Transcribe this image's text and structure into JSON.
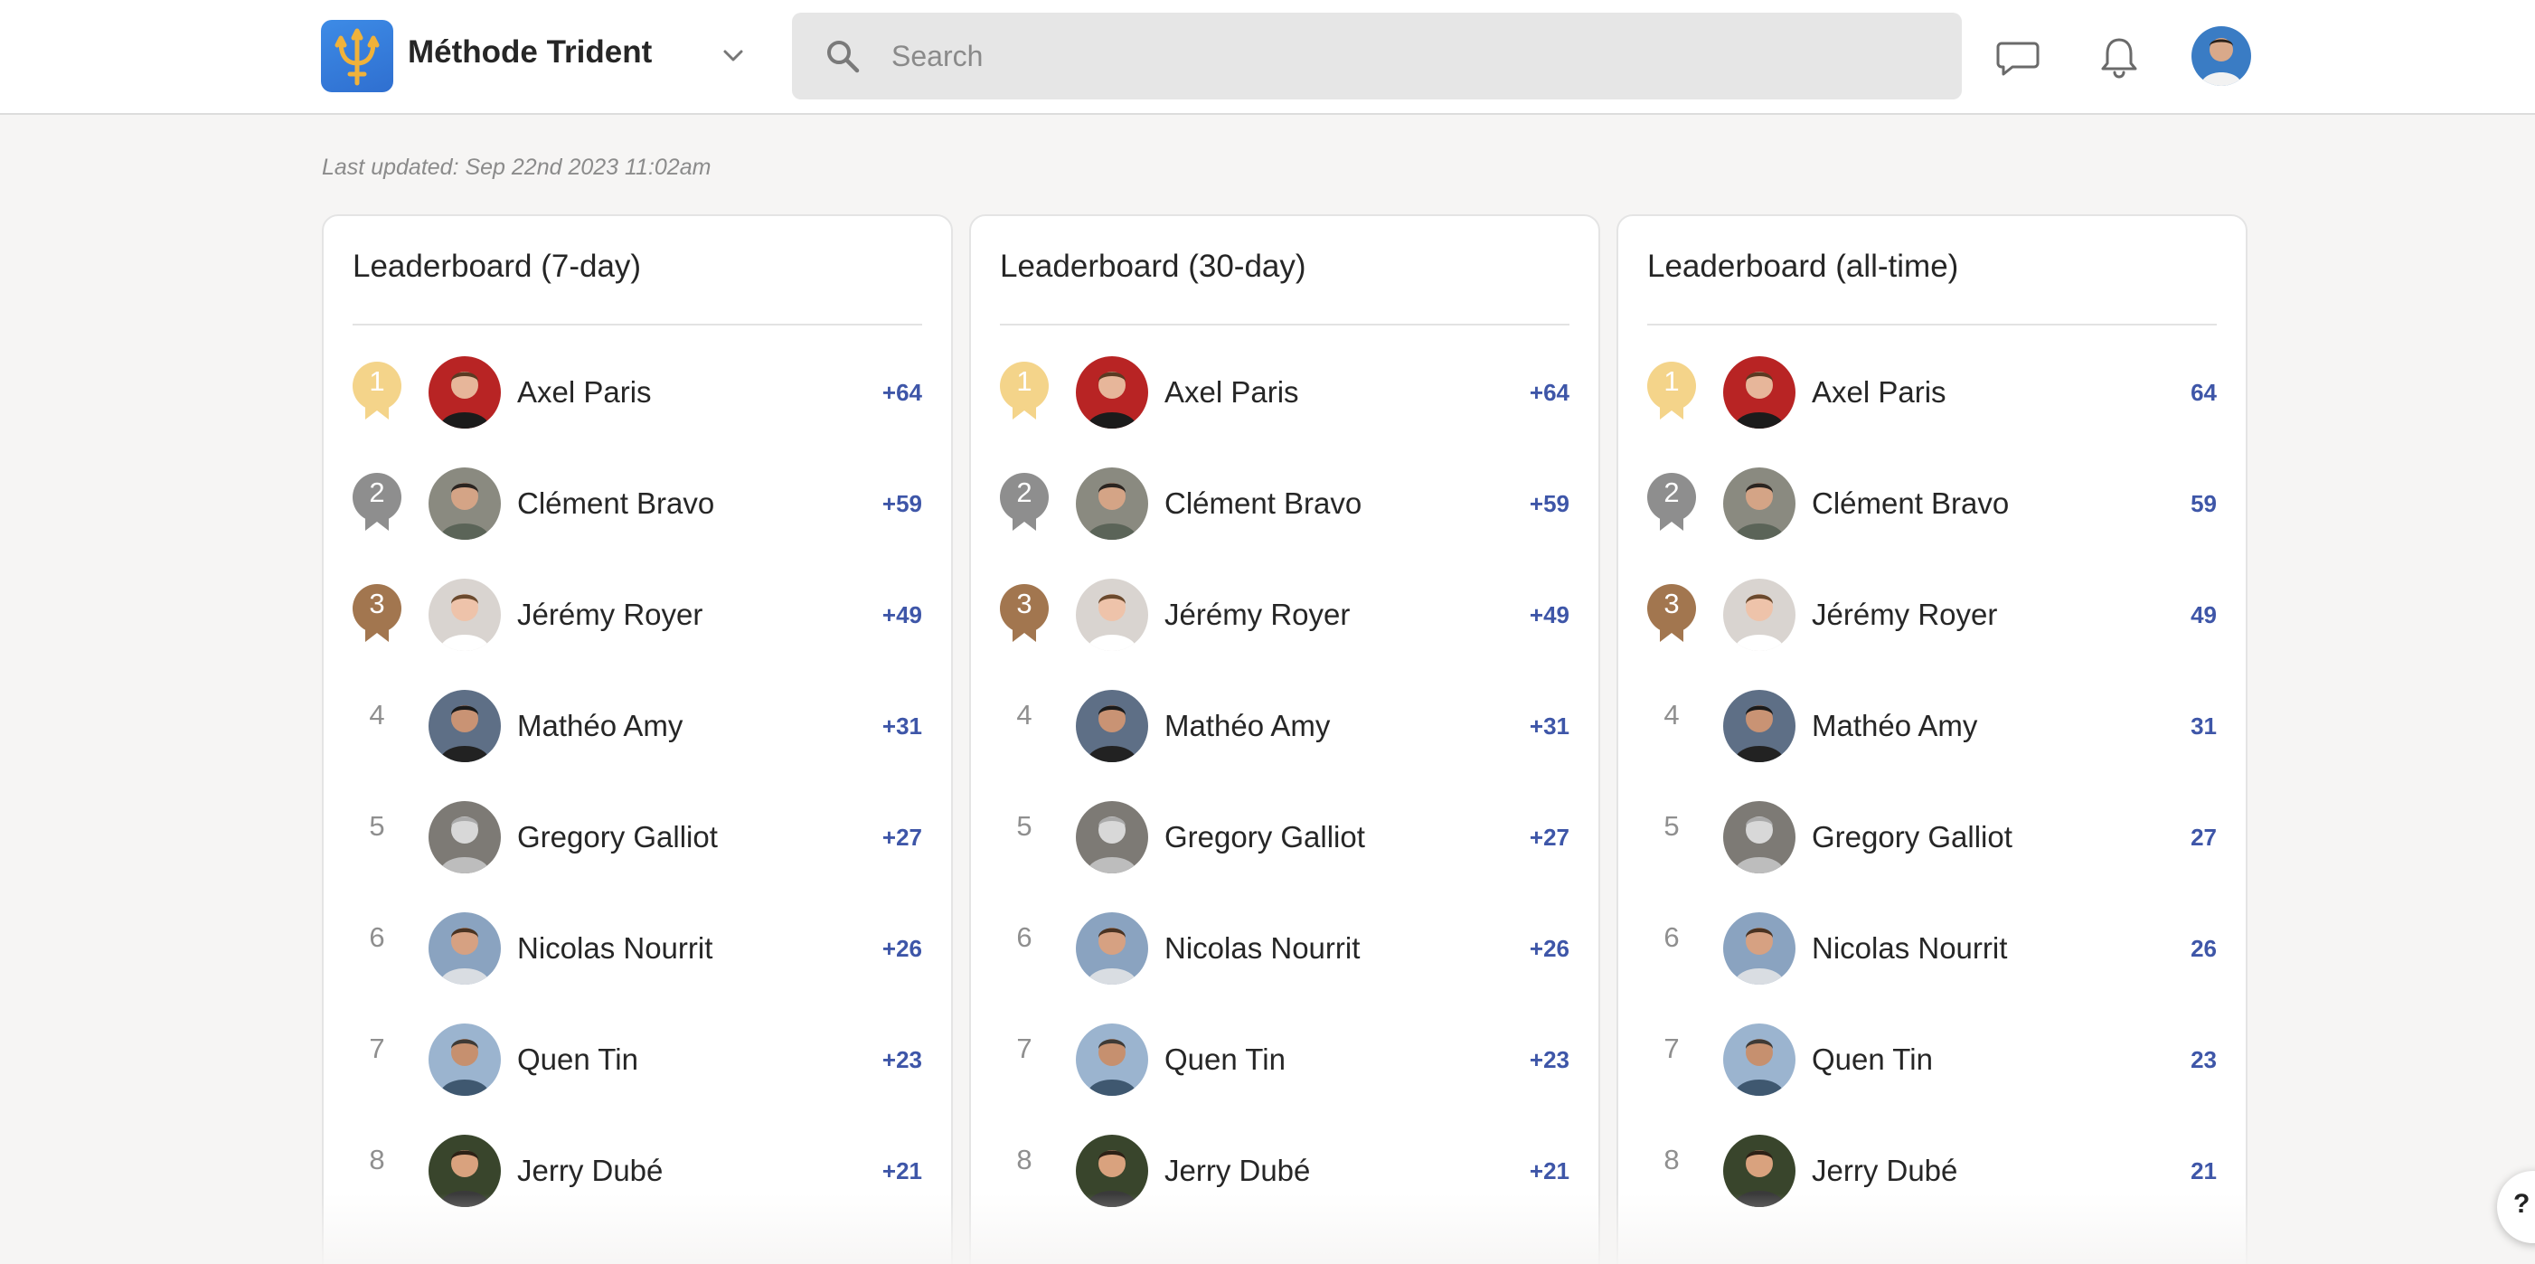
{
  "header": {
    "community_name": "Méthode Trident",
    "search_placeholder": "Search",
    "icons": [
      "trident-logo-icon",
      "chevron-down-icon",
      "search-icon",
      "chat-icon",
      "bell-icon",
      "user-avatar"
    ]
  },
  "last_updated": "Last updated: Sep 22nd 2023 11:02am",
  "colors": {
    "gold": "#f4d48a",
    "silver": "#8e8e8e",
    "bronze": "#a2764f",
    "points": "#3e56a8",
    "logo": "#2f6fd0"
  },
  "leaderboards": [
    {
      "title": "Leaderboard (7-day)",
      "entries": [
        {
          "rank": "1",
          "name": "Axel Paris",
          "points": "+64"
        },
        {
          "rank": "2",
          "name": "Clément Bravo",
          "points": "+59"
        },
        {
          "rank": "3",
          "name": "Jérémy Royer",
          "points": "+49"
        },
        {
          "rank": "4",
          "name": "Mathéo Amy",
          "points": "+31"
        },
        {
          "rank": "5",
          "name": "Gregory Galliot",
          "points": "+27"
        },
        {
          "rank": "6",
          "name": "Nicolas Nourrit",
          "points": "+26"
        },
        {
          "rank": "7",
          "name": "Quen Tin",
          "points": "+23"
        },
        {
          "rank": "8",
          "name": "Jerry Dubé",
          "points": "+21"
        }
      ]
    },
    {
      "title": "Leaderboard (30-day)",
      "entries": [
        {
          "rank": "1",
          "name": "Axel Paris",
          "points": "+64"
        },
        {
          "rank": "2",
          "name": "Clément Bravo",
          "points": "+59"
        },
        {
          "rank": "3",
          "name": "Jérémy Royer",
          "points": "+49"
        },
        {
          "rank": "4",
          "name": "Mathéo Amy",
          "points": "+31"
        },
        {
          "rank": "5",
          "name": "Gregory Galliot",
          "points": "+27"
        },
        {
          "rank": "6",
          "name": "Nicolas Nourrit",
          "points": "+26"
        },
        {
          "rank": "7",
          "name": "Quen Tin",
          "points": "+23"
        },
        {
          "rank": "8",
          "name": "Jerry Dubé",
          "points": "+21"
        }
      ]
    },
    {
      "title": "Leaderboard (all-time)",
      "entries": [
        {
          "rank": "1",
          "name": "Axel Paris",
          "points": "64"
        },
        {
          "rank": "2",
          "name": "Clément Bravo",
          "points": "59"
        },
        {
          "rank": "3",
          "name": "Jérémy Royer",
          "points": "49"
        },
        {
          "rank": "4",
          "name": "Mathéo Amy",
          "points": "31"
        },
        {
          "rank": "5",
          "name": "Gregory Galliot",
          "points": "27"
        },
        {
          "rank": "6",
          "name": "Nicolas Nourrit",
          "points": "26"
        },
        {
          "rank": "7",
          "name": "Quen Tin",
          "points": "23"
        },
        {
          "rank": "8",
          "name": "Jerry Dubé",
          "points": "21"
        }
      ]
    }
  ],
  "help_button_label": "?"
}
